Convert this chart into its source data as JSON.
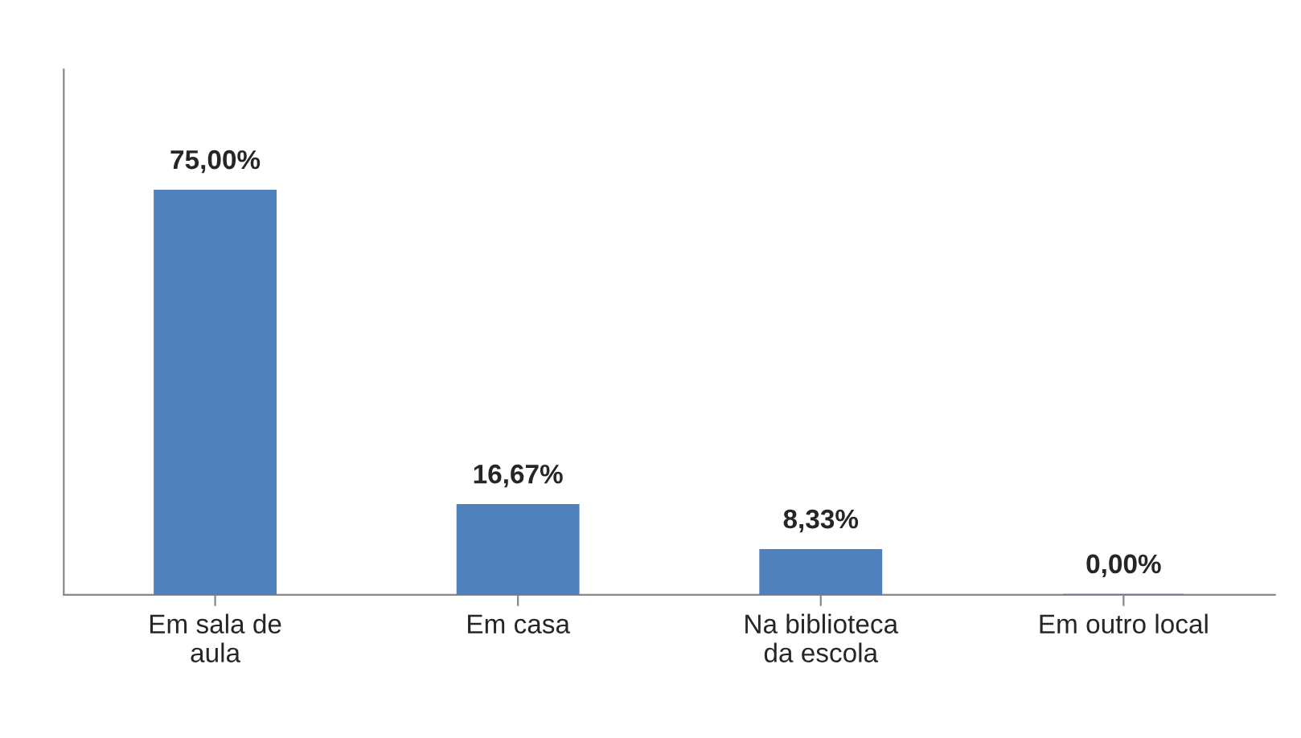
{
  "chart_data": {
    "type": "bar",
    "categories": [
      "Em sala de\naula",
      "Em casa",
      "Na biblioteca\nda escola",
      "Em outro local"
    ],
    "values": [
      75.0,
      16.67,
      8.33,
      0.0
    ],
    "value_labels": [
      "75,00%",
      "16,67%",
      "8,33%",
      "0,00%"
    ],
    "color": "#4f81bd",
    "grid": false,
    "legend": false
  }
}
